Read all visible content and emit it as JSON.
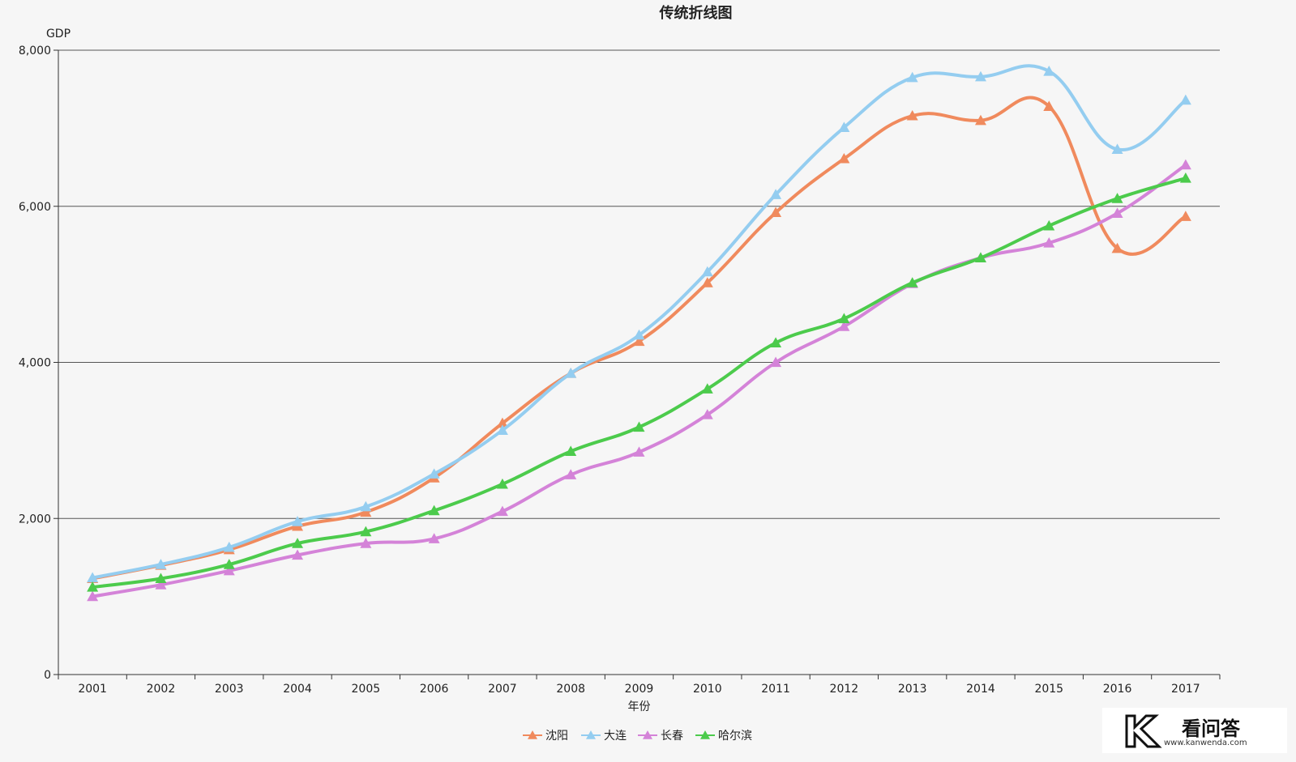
{
  "chart_data": {
    "type": "line",
    "title": "传统折线图",
    "xlabel": "年份",
    "ylabel": "GDP",
    "categories": [
      "2001",
      "2002",
      "2003",
      "2004",
      "2005",
      "2006",
      "2007",
      "2008",
      "2009",
      "2010",
      "2011",
      "2012",
      "2013",
      "2014",
      "2015",
      "2016",
      "2017"
    ],
    "ylim": [
      0,
      8000
    ],
    "yticks": [
      0,
      2000,
      4000,
      6000,
      8000
    ],
    "ytick_labels": [
      "0",
      "2,000",
      "4,000",
      "6,000",
      "8,000"
    ],
    "grid": true,
    "legend_position": "bottom-center",
    "marker": "triangle",
    "series": [
      {
        "name": "沈阳",
        "color": "#f08a5d",
        "values": [
          1230,
          1400,
          1600,
          1900,
          2080,
          2520,
          3220,
          3860,
          4270,
          5020,
          5920,
          6610,
          7160,
          7100,
          7280,
          5460,
          5870
        ]
      },
      {
        "name": "大连",
        "color": "#94cdf0",
        "values": [
          1240,
          1410,
          1630,
          1960,
          2150,
          2570,
          3130,
          3860,
          4350,
          5160,
          6150,
          7010,
          7650,
          7660,
          7730,
          6730,
          7360
        ]
      },
      {
        "name": "长春",
        "color": "#d483d8",
        "values": [
          1000,
          1150,
          1330,
          1530,
          1680,
          1740,
          2090,
          2560,
          2850,
          3330,
          4000,
          4460,
          5010,
          5340,
          5530,
          5910,
          6530
        ]
      },
      {
        "name": "哈尔滨",
        "color": "#4ccb4c",
        "values": [
          1120,
          1230,
          1410,
          1680,
          1830,
          2100,
          2440,
          2860,
          3170,
          3660,
          4250,
          4560,
          5020,
          5340,
          5750,
          6100,
          6360
        ]
      }
    ]
  },
  "watermark": {
    "logo_icon": "k-logo-icon",
    "main": "看问答",
    "sub": "www.kanwenda.com"
  }
}
